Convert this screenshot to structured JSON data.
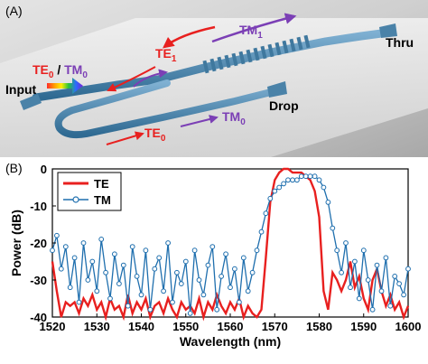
{
  "panel_a": {
    "label": "(A)",
    "text": {
      "input": "Input",
      "thru": "Thru",
      "drop": "Drop",
      "te0_mode_input_te": "TE",
      "te0_mode_input_te_sub": "0",
      "te0_mode_input_slash": " / ",
      "te0_mode_input_tm": "TM",
      "te0_mode_input_tm_sub": "0",
      "te1_label": "TE",
      "te1_sub": "1",
      "tm1_label": "TM",
      "tm1_sub": "1",
      "drop_te0_label": "TE",
      "drop_te0_sub": "0",
      "drop_tm0_label": "TM",
      "drop_tm0_sub": "0"
    },
    "colors": {
      "te": "#e8201f",
      "tm": "#7b3fb5",
      "waveguide": "#4a82a8"
    }
  },
  "panel_b": {
    "label": "(B)",
    "chart_data": {
      "type": "line",
      "xlabel": "Wavelength (nm)",
      "ylabel": "Power (dB)",
      "xlim": [
        1520,
        1600
      ],
      "ylim": [
        -40,
        0
      ],
      "xticks": [
        1520,
        1530,
        1540,
        1550,
        1560,
        1570,
        1580,
        1590,
        1600
      ],
      "yticks": [
        0,
        -10,
        -20,
        -30,
        -40
      ],
      "legend_position": "top-left",
      "series": [
        {
          "name": "TE",
          "color": "#e8201f",
          "marker": "none",
          "x": [
            1520,
            1521,
            1522,
            1523,
            1524,
            1525,
            1526,
            1527,
            1528,
            1529,
            1530,
            1531,
            1532,
            1533,
            1534,
            1535,
            1536,
            1537,
            1538,
            1539,
            1540,
            1541,
            1542,
            1543,
            1544,
            1545,
            1546,
            1547,
            1548,
            1549,
            1550,
            1551,
            1552,
            1553,
            1554,
            1555,
            1556,
            1557,
            1558,
            1559,
            1560,
            1561,
            1562,
            1563,
            1564,
            1565,
            1566,
            1567,
            1568,
            1569,
            1570,
            1571,
            1572,
            1573,
            1574,
            1575,
            1576,
            1577,
            1578,
            1579,
            1580,
            1581,
            1582,
            1583,
            1584,
            1585,
            1586,
            1587,
            1588,
            1589,
            1590,
            1591,
            1592,
            1593,
            1594,
            1595,
            1596,
            1597,
            1598,
            1599,
            1600
          ],
          "y": [
            -25,
            -33,
            -40,
            -36,
            -37,
            -36,
            -39,
            -35,
            -37,
            -34,
            -38,
            -36,
            -40,
            -35,
            -38,
            -37,
            -40,
            -34,
            -39,
            -36,
            -38,
            -35,
            -40,
            -37,
            -36,
            -39,
            -35,
            -38,
            -40,
            -36,
            -38,
            -37,
            -39,
            -35,
            -40,
            -36,
            -38,
            -34,
            -37,
            -39,
            -36,
            -38,
            -35,
            -40,
            -37,
            -39,
            -40,
            -38,
            -24,
            -9,
            -3,
            -1,
            0,
            0,
            -1,
            -1,
            -1,
            -2,
            -3,
            -6,
            -13,
            -33,
            -38,
            -28,
            -30,
            -33,
            -30,
            -25,
            -32,
            -29,
            -35,
            -38,
            -30,
            -27,
            -33,
            -37,
            -34,
            -38,
            -36,
            -40,
            -37
          ]
        },
        {
          "name": "TM",
          "color": "#1f6fae",
          "marker": "circle",
          "x": [
            1520,
            1521,
            1522,
            1523,
            1524,
            1525,
            1526,
            1527,
            1528,
            1529,
            1530,
            1531,
            1532,
            1533,
            1534,
            1535,
            1536,
            1537,
            1538,
            1539,
            1540,
            1541,
            1542,
            1543,
            1544,
            1545,
            1546,
            1547,
            1548,
            1549,
            1550,
            1551,
            1552,
            1553,
            1554,
            1555,
            1556,
            1557,
            1558,
            1559,
            1560,
            1561,
            1562,
            1563,
            1564,
            1565,
            1566,
            1567,
            1568,
            1569,
            1570,
            1571,
            1572,
            1573,
            1574,
            1575,
            1576,
            1577,
            1578,
            1579,
            1580,
            1581,
            1582,
            1583,
            1584,
            1585,
            1586,
            1587,
            1588,
            1589,
            1590,
            1591,
            1592,
            1593,
            1594,
            1595,
            1596,
            1597,
            1598,
            1599,
            1600
          ],
          "y": [
            -22,
            -18,
            -27,
            -21,
            -32,
            -24,
            -36,
            -20,
            -30,
            -25,
            -33,
            -19,
            -28,
            -35,
            -23,
            -31,
            -26,
            -37,
            -21,
            -29,
            -34,
            -22,
            -38,
            -27,
            -24,
            -33,
            -20,
            -36,
            -28,
            -31,
            -25,
            -39,
            -22,
            -30,
            -34,
            -26,
            -21,
            -38,
            -29,
            -23,
            -32,
            -27,
            -36,
            -24,
            -33,
            -28,
            -22,
            -17,
            -12,
            -8,
            -6,
            -5,
            -4,
            -3,
            -3,
            -3,
            -2,
            -2,
            -2,
            -2,
            -3,
            -5,
            -9,
            -16,
            -22,
            -28,
            -20,
            -32,
            -25,
            -35,
            -22,
            -30,
            -38,
            -26,
            -33,
            -24,
            -37,
            -29,
            -31,
            -34,
            -27
          ]
        }
      ]
    }
  }
}
